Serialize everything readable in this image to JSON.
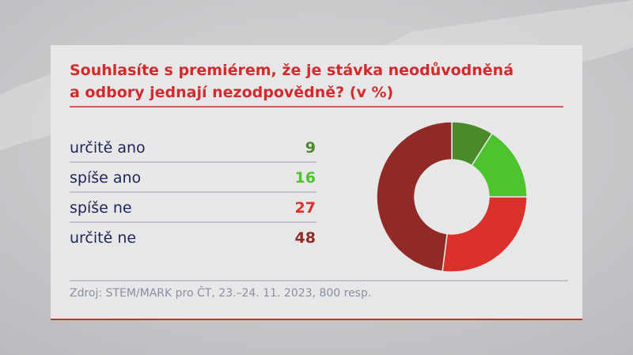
{
  "chart_data": {
    "type": "donut",
    "title": [
      "Souhlasíte s premiérem, že je stávka neodůvodněná",
      "a odbory jednají nezodpovědně? (v %)"
    ],
    "categories": [
      "určitě ano",
      "spíše ano",
      "spíše ne",
      "určitě ne"
    ],
    "values": [
      9,
      16,
      27,
      48
    ],
    "colors": [
      "#4a8a2b",
      "#4bc42d",
      "#da312d",
      "#912a27"
    ],
    "source": "Zdroj: STEM/MARK pro ČT, 23.–24. 11. 2023, 800 resp."
  }
}
